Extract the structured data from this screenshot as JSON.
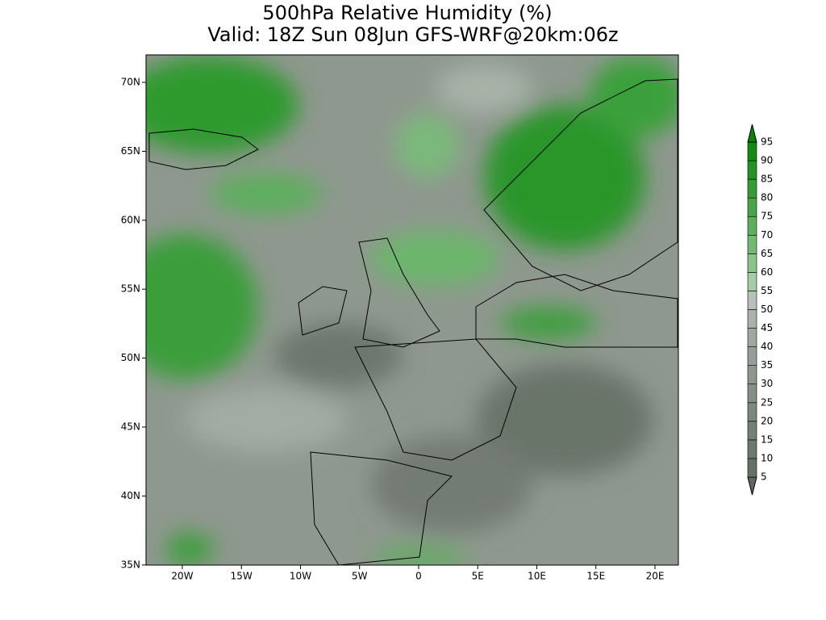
{
  "title": [
    "500hPa Relative Humidity (%)",
    "Valid: 18Z Sun 08Jun GFS-WRF@20km:06z"
  ],
  "map": {
    "lon_labels": [
      "20W",
      "15W",
      "10W",
      "5W",
      "0",
      "5E",
      "10E",
      "15E",
      "20E"
    ],
    "lat_labels": [
      "70N",
      "65N",
      "60N",
      "55N",
      "50N",
      "45N",
      "40N",
      "35N"
    ]
  },
  "colorbar": {
    "levels": [
      5,
      10,
      15,
      20,
      25,
      30,
      35,
      40,
      45,
      50,
      55,
      60,
      65,
      70,
      75,
      80,
      85,
      90,
      95
    ],
    "colors": [
      "#5e6a5e",
      "#667166",
      "#6e786e",
      "#768076",
      "#7e877e",
      "#868f86",
      "#8e968e",
      "#979e97",
      "#a0a7a0",
      "#abb2ab",
      "#b8c1b8",
      "#a6cca6",
      "#8cc28c",
      "#74b874",
      "#5eae5e",
      "#4aa44a",
      "#369a36",
      "#249224",
      "#148a14",
      "#0a820a"
    ]
  }
}
